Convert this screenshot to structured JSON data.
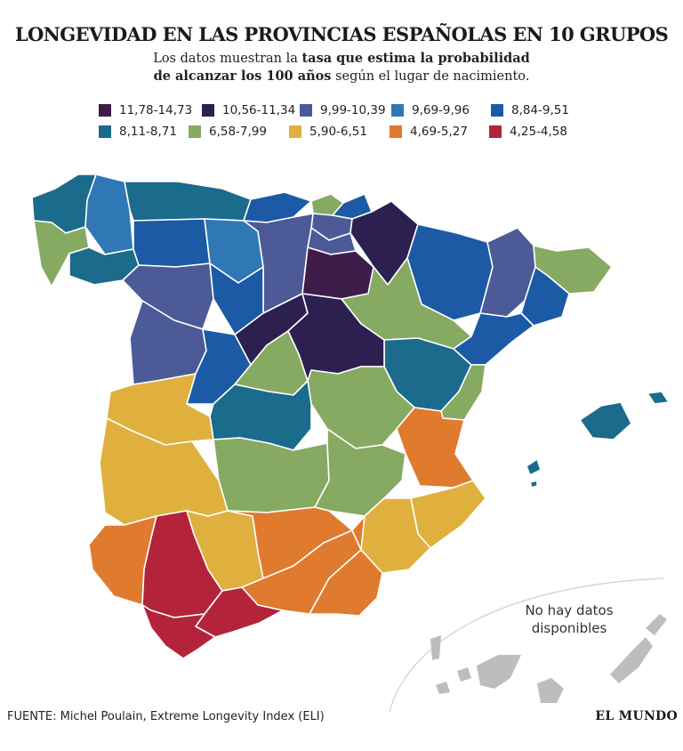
{
  "header": {
    "title": "LONGEVIDAD EN LAS PROVINCIAS ESPAÑOLAS EN 10 GRUPOS",
    "subtitle_line1_a": "Los datos muestran la ",
    "subtitle_line1_b": "tasa que estima la probabilidad",
    "subtitle_line2_a": "de alcanzar los 100 años",
    "subtitle_line2_b": " según el lugar de nacimiento."
  },
  "legend": [
    {
      "label": "11,78-14,73",
      "color": "#3d1c4a"
    },
    {
      "label": "10,56-11,34",
      "color": "#2b2050"
    },
    {
      "label": "9,99-10,39",
      "color": "#4c5a97"
    },
    {
      "label": "9,69-9,96",
      "color": "#2f78b5"
    },
    {
      "label": "8,84-9,51",
      "color": "#1c5aa6"
    },
    {
      "label": "8,11-8,71",
      "color": "#1a6b8c"
    },
    {
      "label": "6,58-7,99",
      "color": "#86aa62"
    },
    {
      "label": "5,90-6,51",
      "color": "#e0b03f"
    },
    {
      "label": "4,69-5,27",
      "color": "#e07a2e"
    },
    {
      "label": "4,25-4,58",
      "color": "#b3243a"
    }
  ],
  "map": {
    "nodata_color": "#bdbdbd",
    "nodata_line1": "No hay datos",
    "nodata_line2": "disponibles"
  },
  "footer": {
    "source": "FUENTE: Michel Poulain, Extreme Longevity Index (ELI)",
    "brand": "EL MUNDO"
  }
}
